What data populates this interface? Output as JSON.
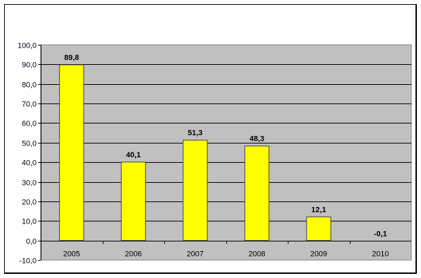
{
  "chart_data": {
    "type": "bar",
    "title": "",
    "xlabel": "",
    "ylabel": "",
    "categories": [
      "2005",
      "2006",
      "2007",
      "2008",
      "2009",
      "2010"
    ],
    "values": [
      89.8,
      40.1,
      51.3,
      48.3,
      12.1,
      -0.1
    ],
    "data_labels": [
      "89,8",
      "40,1",
      "51,3",
      "48,3",
      "12,1",
      "-0,1"
    ],
    "ylim": [
      -10,
      100
    ],
    "yticks": [
      -10,
      0,
      10,
      20,
      30,
      40,
      50,
      60,
      70,
      80,
      90,
      100
    ],
    "ytick_labels": [
      "-10,0",
      "0,0",
      "10,0",
      "20,0",
      "30,0",
      "40,0",
      "50,0",
      "60,0",
      "70,0",
      "80,0",
      "90,0",
      "100,0"
    ],
    "grid": true,
    "legend": null,
    "colors": {
      "bar_fill": "#ffff00",
      "bar_stroke": "#404040",
      "plot_background": "#c0c0c0",
      "gridline": "#000000"
    }
  }
}
